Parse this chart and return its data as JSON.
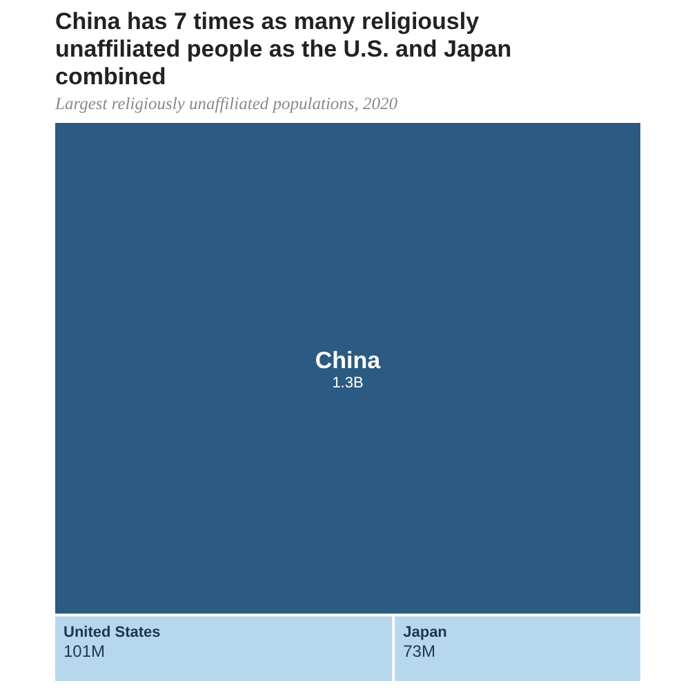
{
  "chart_data": {
    "type": "other",
    "title": "China has 7 times as many religiously unaffiliated people as the U.S. and Japan combined",
    "subtitle": "Largest religiously unaffiliated populations, 2020",
    "categories": [
      "China",
      "United States",
      "Japan"
    ],
    "values": [
      1300000000,
      101000000,
      73000000
    ],
    "value_labels": [
      "1.3B",
      "101M",
      "73M"
    ],
    "colors": [
      "#2b5a82",
      "#b7d7ec",
      "#b7d7ec"
    ]
  }
}
